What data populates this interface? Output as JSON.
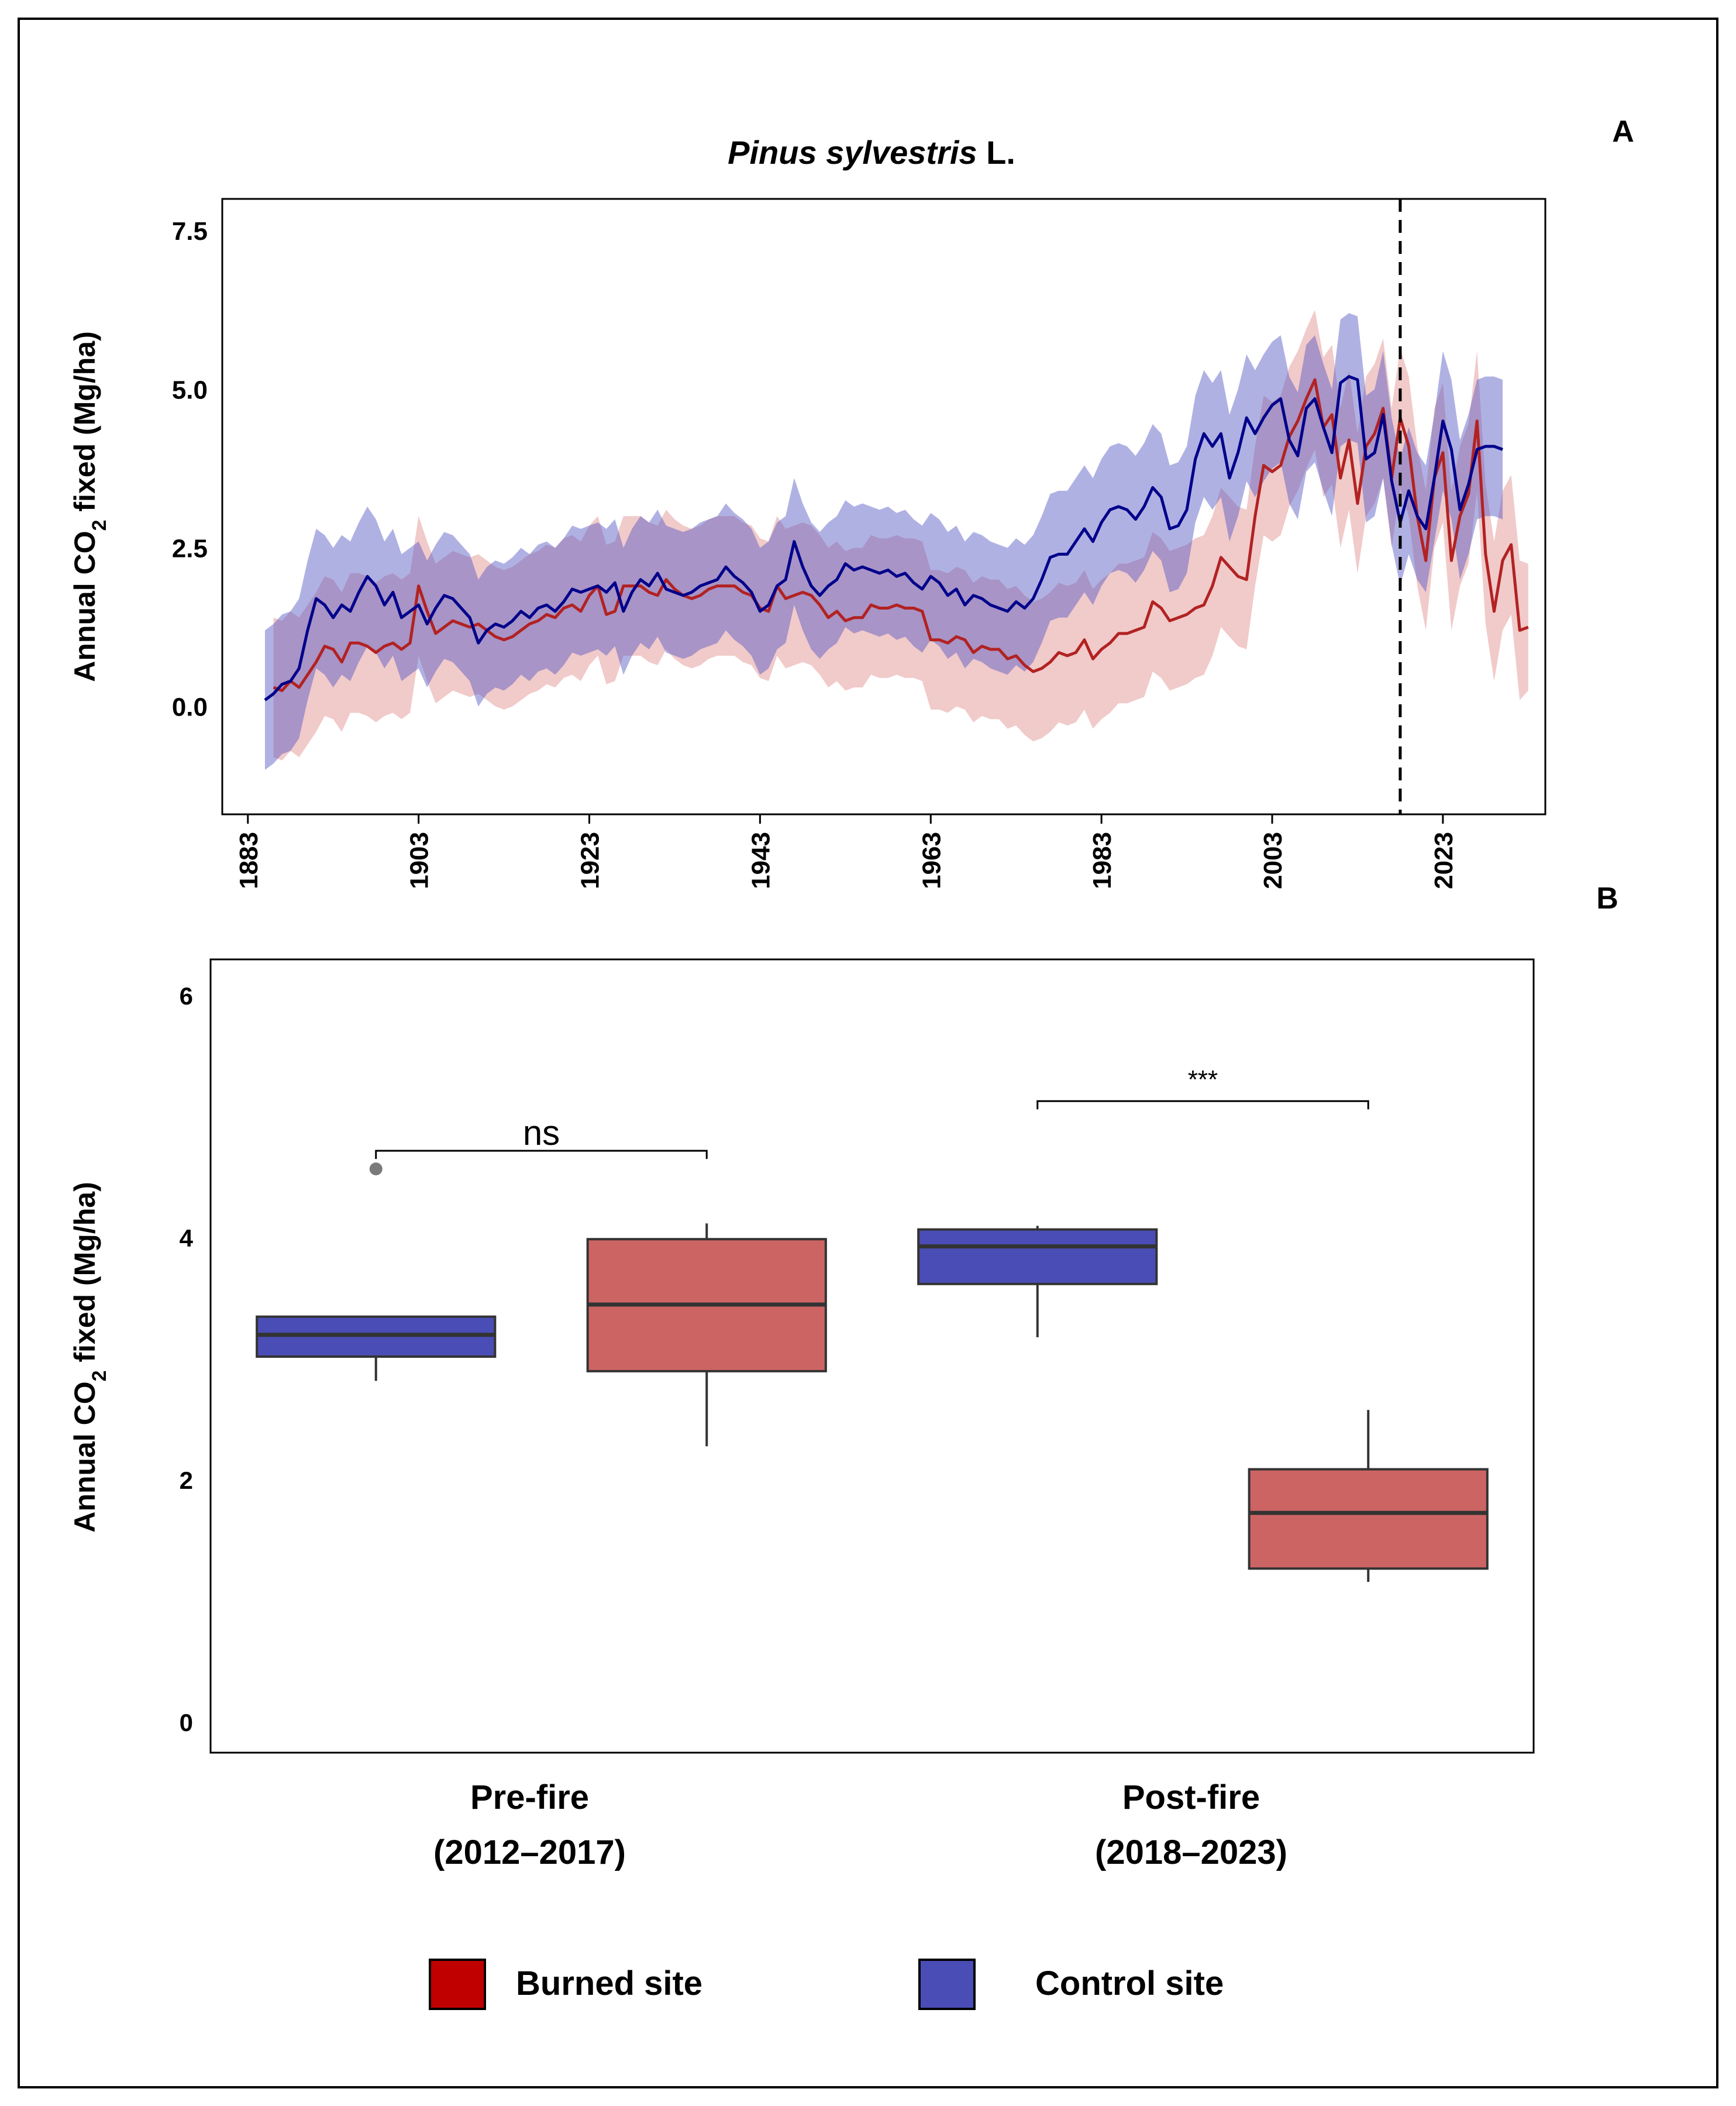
{
  "chart_data": [
    {
      "panel": "A",
      "type": "line",
      "title": "Pinus sylvestris L.",
      "title_italic_part": "Pinus sylvestris",
      "title_regular_part": " L.",
      "ylabel_prefix": "Annual CO",
      "ylabel_sub": "2",
      "ylabel_suffix": " fixed (Mg/ha)",
      "xlim": [
        1880,
        2035
      ],
      "ylim": [
        -1.7,
        8.0
      ],
      "yticks": [
        0.0,
        2.5,
        5.0,
        7.5
      ],
      "ytick_labels": [
        "0.0",
        "2.5",
        "5.0",
        "7.5"
      ],
      "xticks": [
        1883,
        1903,
        1923,
        1943,
        1963,
        1983,
        2003,
        2023
      ],
      "xtick_labels": [
        "1883",
        "1903",
        "1923",
        "1943",
        "1963",
        "1983",
        "2003",
        "2023"
      ],
      "vline_x": 2018,
      "vline_style": "dashed",
      "grid": false,
      "series": [
        {
          "name": "Control site",
          "color": "#00008B",
          "band_color": "#4F52C0",
          "x_start": 1885,
          "values": [
            0.1,
            0.2,
            0.35,
            0.4,
            0.6,
            1.2,
            1.7,
            1.6,
            1.4,
            1.6,
            1.5,
            1.8,
            2.05,
            1.9,
            1.6,
            1.8,
            1.4,
            1.5,
            1.6,
            1.3,
            1.55,
            1.75,
            1.7,
            1.55,
            1.4,
            1.0,
            1.2,
            1.3,
            1.25,
            1.35,
            1.5,
            1.4,
            1.55,
            1.6,
            1.5,
            1.65,
            1.85,
            1.8,
            1.85,
            1.9,
            1.8,
            1.95,
            1.5,
            1.8,
            2.0,
            1.9,
            2.1,
            1.85,
            1.8,
            1.75,
            1.8,
            1.9,
            1.95,
            2.0,
            2.2,
            2.05,
            1.95,
            1.8,
            1.5,
            1.6,
            1.9,
            2.0,
            2.6,
            2.2,
            1.9,
            1.75,
            1.9,
            2.0,
            2.25,
            2.15,
            2.2,
            2.15,
            2.1,
            2.15,
            2.05,
            2.1,
            1.95,
            1.85,
            2.05,
            1.95,
            1.75,
            1.85,
            1.6,
            1.75,
            1.7,
            1.6,
            1.55,
            1.5,
            1.65,
            1.55,
            1.7,
            2.0,
            2.35,
            2.4,
            2.4,
            2.6,
            2.8,
            2.6,
            2.9,
            3.1,
            3.15,
            3.1,
            2.95,
            3.15,
            3.45,
            3.3,
            2.8,
            2.85,
            3.1,
            3.9,
            4.3,
            4.1,
            4.3,
            3.6,
            4.0,
            4.55,
            4.3,
            4.55,
            4.75,
            4.85,
            4.2,
            3.95,
            4.7,
            4.85,
            4.4,
            4.0,
            5.1,
            5.2,
            5.15,
            3.9,
            4.0,
            4.6,
            3.55,
            2.9,
            3.4,
            3.0,
            2.8,
            3.6,
            4.5,
            4.05,
            3.1,
            3.5,
            4.05,
            4.1,
            4.1,
            4.05
          ],
          "band_halfwidth": [
            1.1,
            1.1,
            1.1,
            1.1,
            1.1,
            1.1,
            1.1,
            1.1,
            1.1,
            1.1,
            1.1,
            1.1,
            1.1,
            1.05,
            1.0,
            1.0,
            1.0,
            1.0,
            1.0,
            1.0,
            1.0,
            1.0,
            1.0,
            1.0,
            1.0,
            1.0,
            1.0,
            1.0,
            1.0,
            1.0,
            1.0,
            1.0,
            1.0,
            1.0,
            1.0,
            1.0,
            1.0,
            1.0,
            1.0,
            1.0,
            1.0,
            1.0,
            1.0,
            1.0,
            1.0,
            1.0,
            1.0,
            1.0,
            1.0,
            1.0,
            1.0,
            1.0,
            1.0,
            1.0,
            1.0,
            1.0,
            1.0,
            1.0,
            1.0,
            1.0,
            1.0,
            1.0,
            1.0,
            1.0,
            1.0,
            1.0,
            1.0,
            1.0,
            1.0,
            1.0,
            1.0,
            1.0,
            1.0,
            1.0,
            1.0,
            1.0,
            1.0,
            1.0,
            1.0,
            1.0,
            1.0,
            1.0,
            1.0,
            1.0,
            1.0,
            1.0,
            1.0,
            1.0,
            1.0,
            1.0,
            1.0,
            1.0,
            1.0,
            1.0,
            1.0,
            1.0,
            1.0,
            1.0,
            1.0,
            1.0,
            1.0,
            1.0,
            1.0,
            1.0,
            1.0,
            1.0,
            1.0,
            1.0,
            1.0,
            1.0,
            1.0,
            1.0,
            1.0,
            1.0,
            1.0,
            1.0,
            1.0,
            1.0,
            1.0,
            1.0,
            1.0,
            1.0,
            1.0,
            1.0,
            1.0,
            1.0,
            1.0,
            1.0,
            1.0,
            1.0,
            1.0,
            1.0,
            1.0,
            1.0,
            1.0,
            1.0,
            1.0,
            1.0,
            1.1,
            1.1,
            1.1,
            1.1,
            1.1,
            1.1,
            1.1,
            1.1
          ]
        },
        {
          "name": "Burned site",
          "color": "#B22222",
          "band_color": "#E08A8A",
          "x_start": 1886,
          "values": [
            0.3,
            0.25,
            0.4,
            0.3,
            0.5,
            0.7,
            0.95,
            0.9,
            0.7,
            1.0,
            1.0,
            0.95,
            0.85,
            0.95,
            1.0,
            0.9,
            1.0,
            1.9,
            1.5,
            1.15,
            1.25,
            1.35,
            1.3,
            1.25,
            1.3,
            1.2,
            1.1,
            1.05,
            1.1,
            1.2,
            1.3,
            1.35,
            1.45,
            1.4,
            1.55,
            1.6,
            1.5,
            1.75,
            1.9,
            1.45,
            1.5,
            1.9,
            1.9,
            1.9,
            1.8,
            1.75,
            2.0,
            1.85,
            1.75,
            1.7,
            1.75,
            1.85,
            1.9,
            1.9,
            1.9,
            1.8,
            1.75,
            1.55,
            1.5,
            1.9,
            1.7,
            1.75,
            1.8,
            1.75,
            1.6,
            1.4,
            1.5,
            1.35,
            1.4,
            1.4,
            1.6,
            1.55,
            1.55,
            1.6,
            1.55,
            1.55,
            1.5,
            1.05,
            1.05,
            1.0,
            1.1,
            1.05,
            0.85,
            0.95,
            0.9,
            0.9,
            0.75,
            0.8,
            0.65,
            0.55,
            0.6,
            0.7,
            0.85,
            0.8,
            0.85,
            1.05,
            0.75,
            0.9,
            1.0,
            1.15,
            1.15,
            1.2,
            1.25,
            1.65,
            1.55,
            1.35,
            1.4,
            1.45,
            1.55,
            1.6,
            1.9,
            2.35,
            2.2,
            2.05,
            2.0,
            3.0,
            3.8,
            3.7,
            3.8,
            4.25,
            4.5,
            4.85,
            5.15,
            4.4,
            4.6,
            3.6,
            4.2,
            3.2,
            4.1,
            4.3,
            4.7,
            3.6,
            4.55,
            4.1,
            3.0,
            2.3,
            3.6,
            4.0,
            2.3,
            3.0,
            3.35,
            4.5,
            2.4,
            1.5,
            2.3,
            2.55,
            1.2,
            1.25
          ],
          "band_halfwidth": [
            1.1,
            1.1,
            1.1,
            1.1,
            1.1,
            1.1,
            1.1,
            1.1,
            1.1,
            1.1,
            1.1,
            1.1,
            1.1,
            1.1,
            1.1,
            1.1,
            1.1,
            1.1,
            1.1,
            1.1,
            1.1,
            1.1,
            1.1,
            1.1,
            1.1,
            1.1,
            1.1,
            1.1,
            1.1,
            1.1,
            1.1,
            1.1,
            1.1,
            1.1,
            1.1,
            1.1,
            1.1,
            1.1,
            1.1,
            1.1,
            1.1,
            1.1,
            1.1,
            1.1,
            1.1,
            1.1,
            1.1,
            1.1,
            1.1,
            1.1,
            1.1,
            1.1,
            1.1,
            1.1,
            1.1,
            1.1,
            1.1,
            1.1,
            1.1,
            1.1,
            1.1,
            1.1,
            1.1,
            1.1,
            1.1,
            1.1,
            1.1,
            1.1,
            1.1,
            1.1,
            1.1,
            1.1,
            1.1,
            1.1,
            1.1,
            1.1,
            1.1,
            1.1,
            1.1,
            1.1,
            1.1,
            1.1,
            1.1,
            1.1,
            1.1,
            1.1,
            1.1,
            1.1,
            1.1,
            1.1,
            1.1,
            1.1,
            1.1,
            1.1,
            1.1,
            1.1,
            1.1,
            1.1,
            1.1,
            1.1,
            1.1,
            1.1,
            1.1,
            1.1,
            1.1,
            1.1,
            1.1,
            1.1,
            1.1,
            1.1,
            1.1,
            1.1,
            1.1,
            1.1,
            1.1,
            1.1,
            1.1,
            1.1,
            1.1,
            1.1,
            1.1,
            1.1,
            1.1,
            1.1,
            1.1,
            1.1,
            1.1,
            1.1,
            1.1,
            1.1,
            1.1,
            1.1,
            1.1,
            1.1,
            1.1,
            1.1,
            1.1,
            1.1,
            1.1,
            1.1,
            1.1,
            1.1,
            1.1,
            1.1,
            1.1,
            1.1,
            1.1
          ]
        }
      ]
    },
    {
      "panel": "B",
      "type": "box",
      "ylabel_prefix": "Annual CO",
      "ylabel_sub": "2",
      "ylabel_suffix": " fixed (Mg/ha)",
      "ylim": [
        -0.25,
        6.3
      ],
      "yticks": [
        0,
        2,
        4,
        6
      ],
      "ytick_labels": [
        "0",
        "2",
        "4",
        "6"
      ],
      "categories": [
        {
          "label_line1": "Pre-fire",
          "label_line2": "(2012–2017)"
        },
        {
          "label_line1": "Post-fire",
          "label_line2": "(2018–2023)"
        }
      ],
      "boxes": [
        {
          "group": 0,
          "site": "Control site",
          "color": "#4A4DB5",
          "whisker_low": 2.82,
          "q1": 3.02,
          "median": 3.2,
          "q3": 3.35,
          "whisker_high": 3.35,
          "outliers": [
            4.57
          ]
        },
        {
          "group": 0,
          "site": "Burned site",
          "color": "#CD6464",
          "whisker_low": 2.28,
          "q1": 2.9,
          "median": 3.45,
          "q3": 3.99,
          "whisker_high": 4.12,
          "outliers": []
        },
        {
          "group": 1,
          "site": "Control site",
          "color": "#4A4DB5",
          "whisker_low": 3.18,
          "q1": 3.62,
          "median": 3.93,
          "q3": 4.07,
          "whisker_high": 4.1,
          "outliers": []
        },
        {
          "group": 1,
          "site": "Burned site",
          "color": "#CD6464",
          "whisker_low": 1.16,
          "q1": 1.27,
          "median": 1.73,
          "q3": 2.09,
          "whisker_high": 2.58,
          "outliers": []
        }
      ],
      "significance": [
        {
          "group": 0,
          "label": "ns",
          "y": 4.72
        },
        {
          "group": 1,
          "label": "***",
          "y": 5.13
        }
      ]
    }
  ],
  "panel_labels": {
    "a": "A",
    "b": "B"
  },
  "legend": [
    {
      "label": "Burned site",
      "color": "#C00000"
    },
    {
      "label": "Control site",
      "color": "#4A4DB5"
    }
  ]
}
